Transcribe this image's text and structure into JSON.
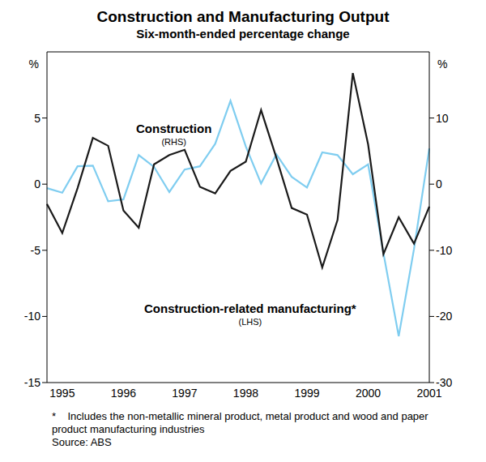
{
  "chart_data": {
    "type": "line",
    "title": "Construction and Manufacturing Output",
    "subtitle": "Six-month-ended percentage change",
    "ylabel": "%",
    "y2label": "%",
    "categories": [
      null,
      "1995",
      null,
      null,
      null,
      "1996",
      null,
      null,
      null,
      "1997",
      null,
      null,
      null,
      "1998",
      null,
      null,
      null,
      "1999",
      null,
      null,
      null,
      "2000",
      null,
      null,
      null,
      "2001"
    ],
    "series": [
      {
        "name": "Construction",
        "axis_note": "(RHS)",
        "axis": "y2",
        "color": "#7fcdf0",
        "values": [
          -0.6,
          -1.3,
          2.7,
          2.8,
          -2.6,
          -2.3,
          4.4,
          2.6,
          -1.2,
          2.2,
          2.7,
          6.1,
          12.6,
          5.7,
          0.1,
          4.5,
          1.1,
          -0.5,
          4.8,
          4.4,
          1.5,
          3.0,
          -10.4,
          -23.0,
          -9.8,
          5.4
        ]
      },
      {
        "name": "Construction-related manufacturing*",
        "axis_note": "(LHS)",
        "axis": "y",
        "color": "#1a1a1a",
        "values": [
          -1.5,
          -3.7,
          -0.3,
          3.5,
          2.9,
          -2.0,
          -3.3,
          1.5,
          2.2,
          2.6,
          -0.2,
          -0.7,
          1.0,
          1.7,
          5.6,
          2.0,
          -1.8,
          -2.3,
          -6.3,
          -2.7,
          8.4,
          3.0,
          -5.3,
          -2.5,
          -4.5,
          -1.7
        ]
      }
    ],
    "ylim": [
      -15,
      10
    ],
    "yticks": [
      -15,
      -10,
      -5,
      0,
      5
    ],
    "y2lim": [
      -30,
      20
    ],
    "y2ticks": [
      -30,
      -20,
      -10,
      0,
      10
    ],
    "grid": false,
    "notes": [
      "*    Includes the non-metallic mineral product, metal product and wood and paper product manufacturing industries",
      "Source: ABS"
    ]
  }
}
